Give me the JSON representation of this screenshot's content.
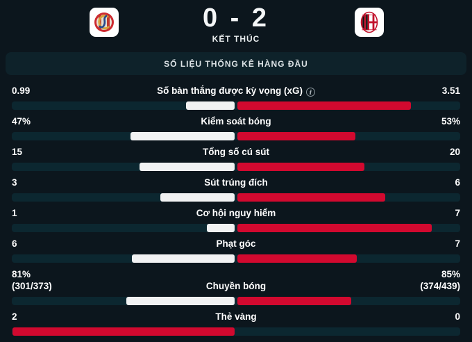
{
  "scoreboard": {
    "score": "0 - 2",
    "status": "KẾT THÚC",
    "home_logo_icon": "cremonese-crest",
    "away_logo_icon": "ac-milan-crest"
  },
  "section": {
    "title": "SỐ LIỆU THỐNG KÊ HÀNG ĐẦU"
  },
  "colors": {
    "background": "#0c161d",
    "band_background": "#0e222a",
    "bar_track": "#0c2730",
    "home_bar": "#f1f2f3",
    "away_bar": "#d2092f",
    "text": "#ffffff"
  },
  "stats": {
    "rows": [
      {
        "label": "Số bàn thắng được kỳ vọng (xG)",
        "has_info": true,
        "left": "0.99",
        "right": "3.51",
        "left_num": 0.99,
        "right_num": 3.51
      },
      {
        "label": "Kiểm soát bóng",
        "left": "47%",
        "right": "53%",
        "left_num": 47,
        "right_num": 53
      },
      {
        "label": "Tổng số cú sút",
        "left": "15",
        "right": "20",
        "left_num": 15,
        "right_num": 20
      },
      {
        "label": "Sút trúng đích",
        "left": "3",
        "right": "6",
        "left_num": 3,
        "right_num": 6
      },
      {
        "label": "Cơ hội nguy hiểm",
        "left": "1",
        "right": "7",
        "left_num": 1,
        "right_num": 7
      },
      {
        "label": "Phạt góc",
        "left": "6",
        "right": "7",
        "left_num": 6,
        "right_num": 7
      },
      {
        "label": "Chuyền bóng",
        "left": "81%",
        "left_sub": "(301/373)",
        "right": "85%",
        "right_sub": "(374/439)",
        "left_num": 81,
        "right_num": 85
      },
      {
        "label": "Thẻ vàng",
        "left": "2",
        "right": "0",
        "left_num": 2,
        "right_num": 0,
        "left_bar_color": "#d2092f"
      }
    ]
  }
}
